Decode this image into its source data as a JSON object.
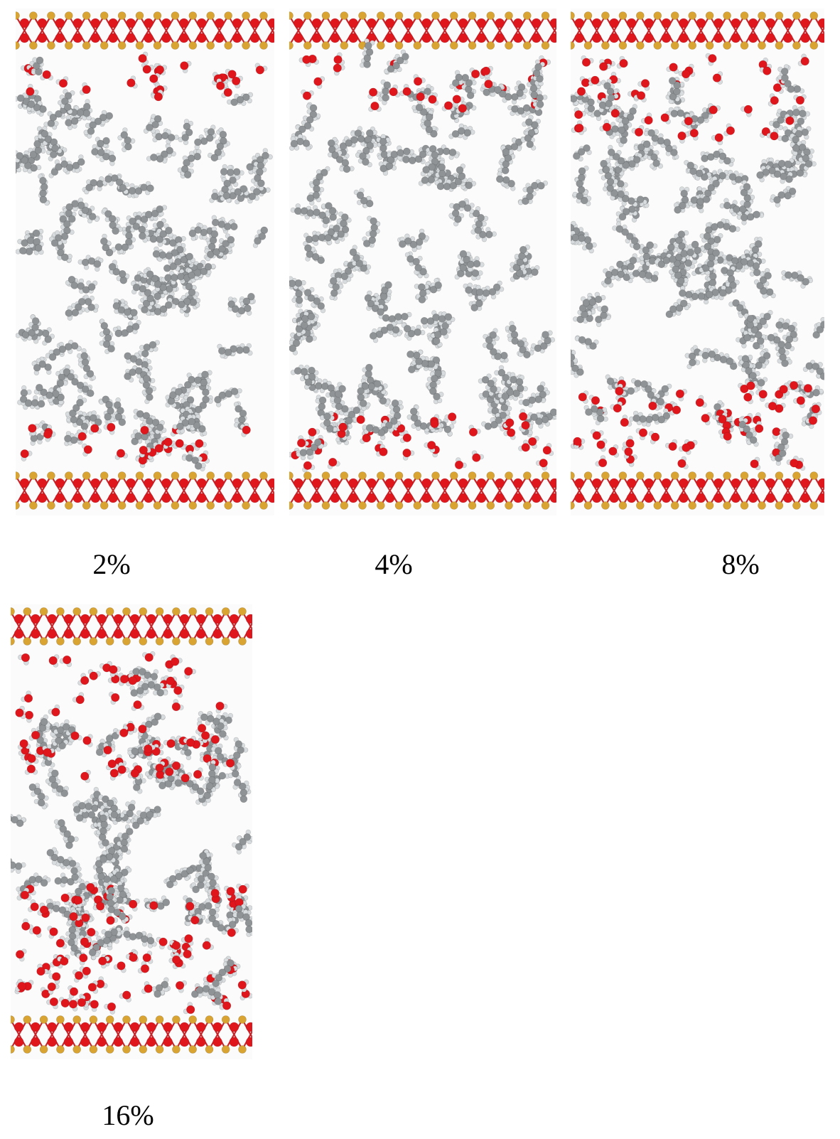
{
  "figure": {
    "panels": [
      {
        "label": "2%",
        "water_level": 0.02
      },
      {
        "label": "4%",
        "water_level": 0.04
      },
      {
        "label": "8%",
        "water_level": 0.08
      },
      {
        "label": "16%",
        "water_level": 0.16
      }
    ],
    "colors": {
      "oxygen": "#e0161d",
      "silicon": "#d9a431",
      "carbon": "#8f9396",
      "hydrogen": "#d8dcde",
      "background": "#fbfbfb"
    }
  }
}
